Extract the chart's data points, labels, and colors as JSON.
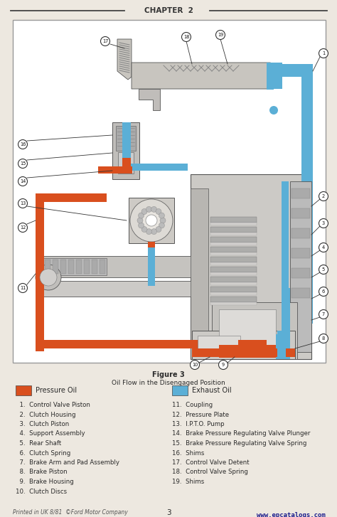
{
  "title": "CHAPTER  2",
  "figure_title": "Figure 3",
  "figure_subtitle": "Oil Flow in the Disengaged Position",
  "legend_left_label": "Pressure Oil",
  "legend_left_color": "#D94F1E",
  "legend_right_label": "Exhaust Oil",
  "legend_right_color": "#5BAFD6",
  "items_left": [
    "  1.  Control Valve Piston",
    "  2.  Clutch Housing",
    "  3.  Clutch Piston",
    "  4.  Support Assembly",
    "  5.  Rear Shaft",
    "  6.  Clutch Spring",
    "  7.  Brake Arm and Pad Assembly",
    "  8.  Brake Piston",
    "  9.  Brake Housing",
    "10.  Clutch Discs"
  ],
  "items_right": [
    "11.  Coupling",
    "12.  Pressure Plate",
    "13.  I.P.T.O. Pump",
    "14.  Brake Pressure Regulating Valve Plunger",
    "15.  Brake Pressure Regulating Valve Spring",
    "16.  Shims",
    "17.  Control Valve Detent",
    "18.  Control Valve Spring",
    "19.  Shims"
  ],
  "footer_left": "Printed in UK 8/81  ©Ford Motor Company",
  "footer_center": "3",
  "footer_right": "www.epcatalogs.com",
  "bg_color": "#EDE8E0",
  "diagram_bg": "#F2EDE5",
  "text_color": "#2A2A2A",
  "pressure_oil_color": "#D94F1E",
  "exhaust_oil_color": "#5BAFD6",
  "component_color": "#C0BEBB",
  "chapter_line_color": "#444444",
  "chapter_text_color": "#333333"
}
